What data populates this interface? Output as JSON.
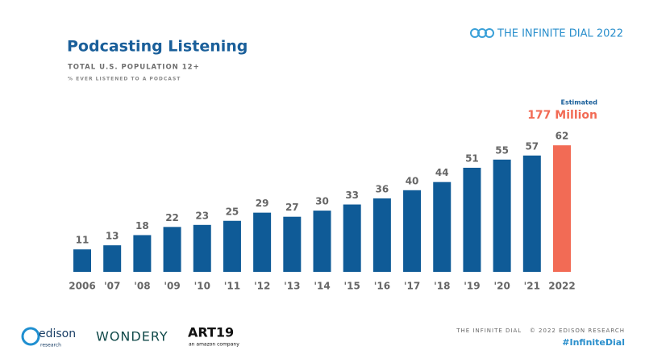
{
  "header": {
    "brand": "THE INFINITE DIAL 2022"
  },
  "chart_data": {
    "type": "bar",
    "title": "Podcasting Listening",
    "subtitle": "TOTAL U.S. POPULATION 12+",
    "note": "% EVER LISTENED TO A PODCAST",
    "categories": [
      "2006",
      "'07",
      "'08",
      "'09",
      "'10",
      "'11",
      "'12",
      "'13",
      "'14",
      "'15",
      "'16",
      "'17",
      "'18",
      "'19",
      "'20",
      "'21",
      "2022"
    ],
    "values": [
      11,
      13,
      18,
      22,
      23,
      25,
      29,
      27,
      30,
      33,
      36,
      40,
      44,
      51,
      55,
      57,
      62
    ],
    "colors": [
      "#0f5b97",
      "#0f5b97",
      "#0f5b97",
      "#0f5b97",
      "#0f5b97",
      "#0f5b97",
      "#0f5b97",
      "#0f5b97",
      "#0f5b97",
      "#0f5b97",
      "#0f5b97",
      "#0f5b97",
      "#0f5b97",
      "#0f5b97",
      "#0f5b97",
      "#0f5b97",
      "#f26b55"
    ],
    "annotations": [
      "Estimated",
      "177 Million"
    ]
  },
  "footer": {
    "logos": [
      "edison",
      "research",
      "WONDERY",
      "ART19",
      "an amazon company"
    ],
    "credit": "THE INFINITE DIAL   © 2022 EDISON RESEARCH",
    "hashtag": "#InfiniteDial"
  }
}
